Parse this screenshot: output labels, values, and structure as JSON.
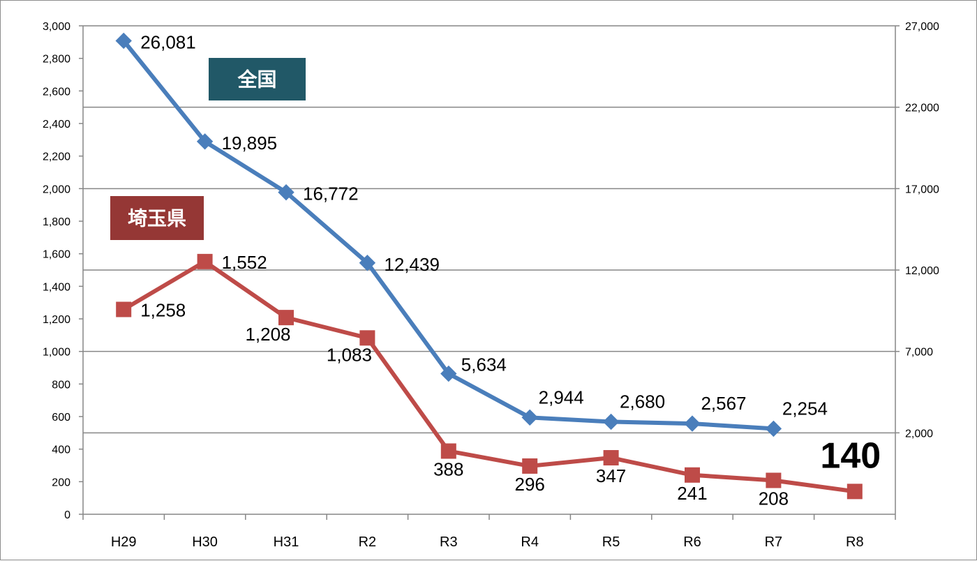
{
  "chart_data": {
    "type": "line",
    "title": "",
    "categories": [
      "H29",
      "H30",
      "H31",
      "R2",
      "R3",
      "R4",
      "R5",
      "R6",
      "R7",
      "R8"
    ],
    "left_axis": {
      "ylim": [
        0,
        3000
      ],
      "ticks": [
        "0",
        "200",
        "400",
        "600",
        "800",
        "1,000",
        "1,200",
        "1,400",
        "1,600",
        "1,800",
        "2,000",
        "2,200",
        "2,400",
        "2,600",
        "2,800",
        "3,000"
      ]
    },
    "right_axis": {
      "ylim": [
        -3000,
        27000
      ],
      "ticks": [
        "2,000",
        "7,000",
        "12,000",
        "17,000",
        "22,000",
        "27,000"
      ]
    },
    "gridlines": "horizontal, at right-axis ticks",
    "series": [
      {
        "name": "全国",
        "axis": "right",
        "color": "#4a7ebb",
        "marker": "diamond",
        "values": [
          26081,
          19895,
          16772,
          12439,
          5634,
          2944,
          2680,
          2567,
          2254,
          null
        ],
        "labels": [
          "26,081",
          "19,895",
          "16,772",
          "12,439",
          "5,634",
          "2,944",
          "2,680",
          "2,567",
          "2,254",
          null
        ]
      },
      {
        "name": "埼玉県",
        "axis": "left",
        "color": "#be4b48",
        "marker": "square",
        "values": [
          1258,
          1552,
          1208,
          1083,
          388,
          296,
          347,
          241,
          208,
          140
        ],
        "labels": [
          "1,258",
          "1,552",
          "1,208",
          "1,083",
          "388",
          "296",
          "347",
          "241",
          "208",
          "140"
        ]
      }
    ],
    "legend": [
      {
        "label": "全国",
        "background": "#215867"
      },
      {
        "label": "埼玉県",
        "background": "#953735"
      }
    ]
  }
}
